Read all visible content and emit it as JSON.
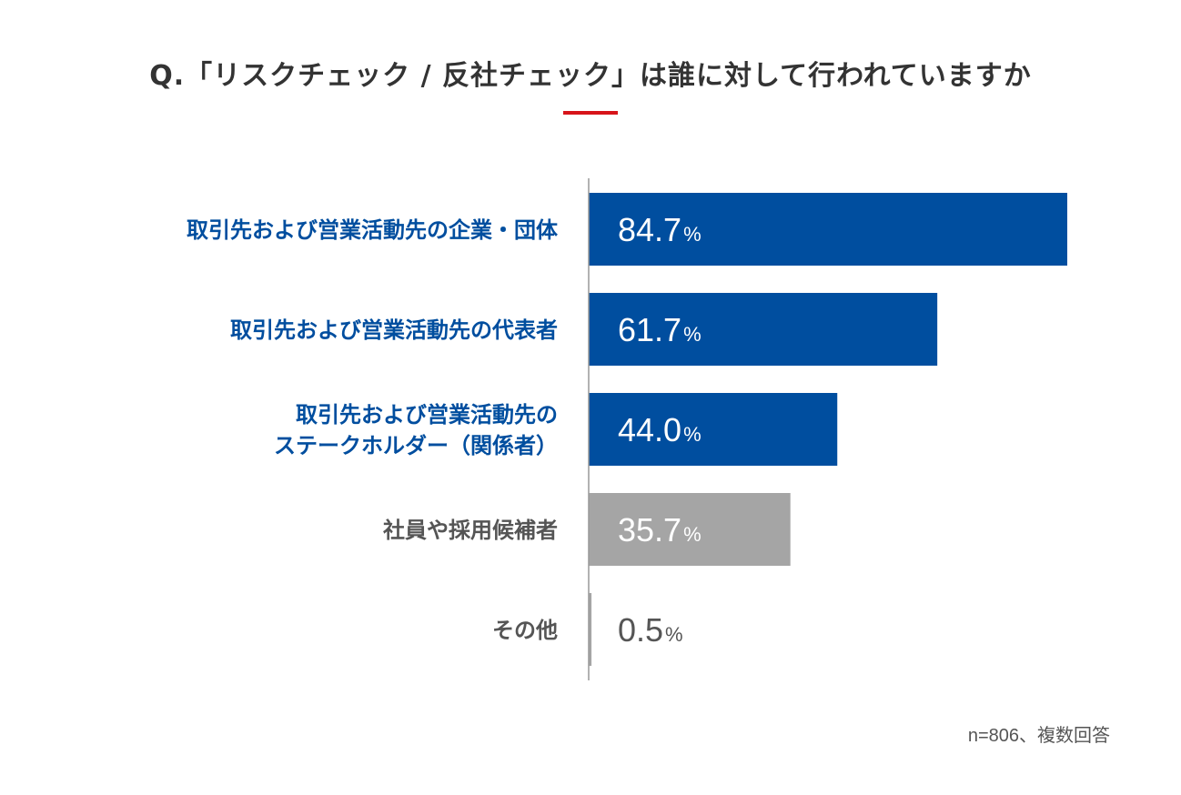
{
  "chart_data": {
    "type": "bar",
    "orientation": "horizontal",
    "title": "Q.「リスクチェック / 反社チェック」は誰に対して行われていますか",
    "categories": [
      [
        "取引先および営業活動先の企業・団体"
      ],
      [
        "取引先および営業活動先の代表者"
      ],
      [
        "取引先および営業活動先の",
        "ステークホルダー（関係者）"
      ],
      [
        "社員や採用候補者"
      ],
      [
        "その他"
      ]
    ],
    "values": [
      84.7,
      61.7,
      44.0,
      35.7,
      0.5
    ],
    "value_labels": [
      "84.7",
      "61.7",
      "44.0",
      "35.7",
      "0.5"
    ],
    "unit": "%",
    "bar_colors": [
      "#004e9f",
      "#004e9f",
      "#004e9f",
      "#a5a5a5",
      "#a5a5a5"
    ],
    "label_colors": [
      "#004e9f",
      "#004e9f",
      "#004e9f",
      "#555555",
      "#555555"
    ],
    "xlim": [
      0,
      100
    ],
    "grid": false,
    "legend": "none"
  },
  "note": "n=806、複数回答",
  "colors": {
    "accent_rule": "#d7141a",
    "title": "#333333"
  }
}
